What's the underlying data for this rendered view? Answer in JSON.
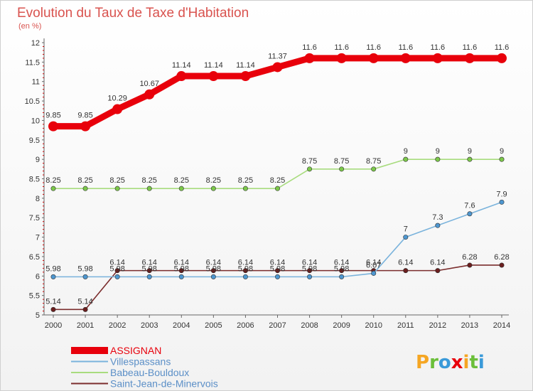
{
  "chart_data": {
    "type": "line",
    "title": "Evolution du Taux de Taxe d'Habitation",
    "subtitle": "(en %)",
    "x": [
      "2000",
      "2001",
      "2002",
      "2003",
      "2004",
      "2005",
      "2006",
      "2007",
      "2008",
      "2009",
      "2010",
      "2011",
      "2012",
      "2013",
      "2014"
    ],
    "ylim": [
      5,
      12
    ],
    "yticks": [
      "5",
      "5.5",
      "6",
      "6.5",
      "7",
      "7.5",
      "8",
      "8.5",
      "9",
      "9.5",
      "10",
      "10.5",
      "11",
      "11.5",
      "12"
    ],
    "grid": false,
    "legend_position": "bottom-left",
    "series": [
      {
        "name": "ASSIGNAN",
        "color": "#e8000b",
        "marker_color": "#e8000b",
        "values": [
          9.85,
          9.85,
          10.29,
          10.67,
          11.14,
          11.14,
          11.14,
          11.37,
          11.6,
          11.6,
          11.6,
          11.6,
          11.6,
          11.6,
          11.6
        ],
        "labels": [
          "9.85",
          "9.85",
          "10.29",
          "10.67",
          "11.14",
          "11.14",
          "11.14",
          "11.37",
          "11.6",
          "11.6",
          "11.6",
          "11.6",
          "11.6",
          "11.6",
          "11.6"
        ]
      },
      {
        "name": "Villespassans",
        "color": "#7ab3dc",
        "marker_color": "#4e97d0",
        "values": [
          5.98,
          5.98,
          5.98,
          5.98,
          5.98,
          5.98,
          5.98,
          5.98,
          5.98,
          5.98,
          6.07,
          7,
          7.3,
          7.6,
          7.9
        ],
        "labels": [
          "5.98",
          "5.98",
          "5.98",
          "5.98",
          "5.98",
          "5.98",
          "5.98",
          "5.98",
          "5.98",
          "5.98",
          "6.07",
          "7",
          "7.3",
          "7.6",
          "7.9"
        ]
      },
      {
        "name": "Babeau-Bouldoux",
        "color": "#a8dc7e",
        "marker_color": "#7cc84a",
        "values": [
          8.25,
          8.25,
          8.25,
          8.25,
          8.25,
          8.25,
          8.25,
          8.25,
          8.75,
          8.75,
          8.75,
          9,
          9,
          9,
          9
        ],
        "labels": [
          "8.25",
          "8.25",
          "8.25",
          "8.25",
          "8.25",
          "8.25",
          "8.25",
          "8.25",
          "8.75",
          "8.75",
          "8.75",
          "9",
          "9",
          "9",
          "9"
        ]
      },
      {
        "name": "Saint-Jean-de-Minervois",
        "color": "#7b2d2d",
        "marker_color": "#6b1e1e",
        "values": [
          5.14,
          5.14,
          6.14,
          6.14,
          6.14,
          6.14,
          6.14,
          6.14,
          6.14,
          6.14,
          6.14,
          6.14,
          6.14,
          6.28,
          6.28
        ],
        "labels": [
          "5.14",
          "5.14",
          "6.14",
          "6.14",
          "6.14",
          "6.14",
          "6.14",
          "6.14",
          "6.14",
          "6.14",
          "6.14",
          "6.14",
          "6.14",
          "6.28",
          "6.28"
        ]
      }
    ]
  },
  "logo": {
    "letters": [
      "P",
      "r",
      "o",
      "x",
      "i",
      "t",
      "i"
    ],
    "colors": [
      "#f5a623",
      "#6bbf3a",
      "#3a9ad9",
      "#e8000b",
      "#f5a623",
      "#6bbf3a",
      "#3a9ad9"
    ]
  }
}
